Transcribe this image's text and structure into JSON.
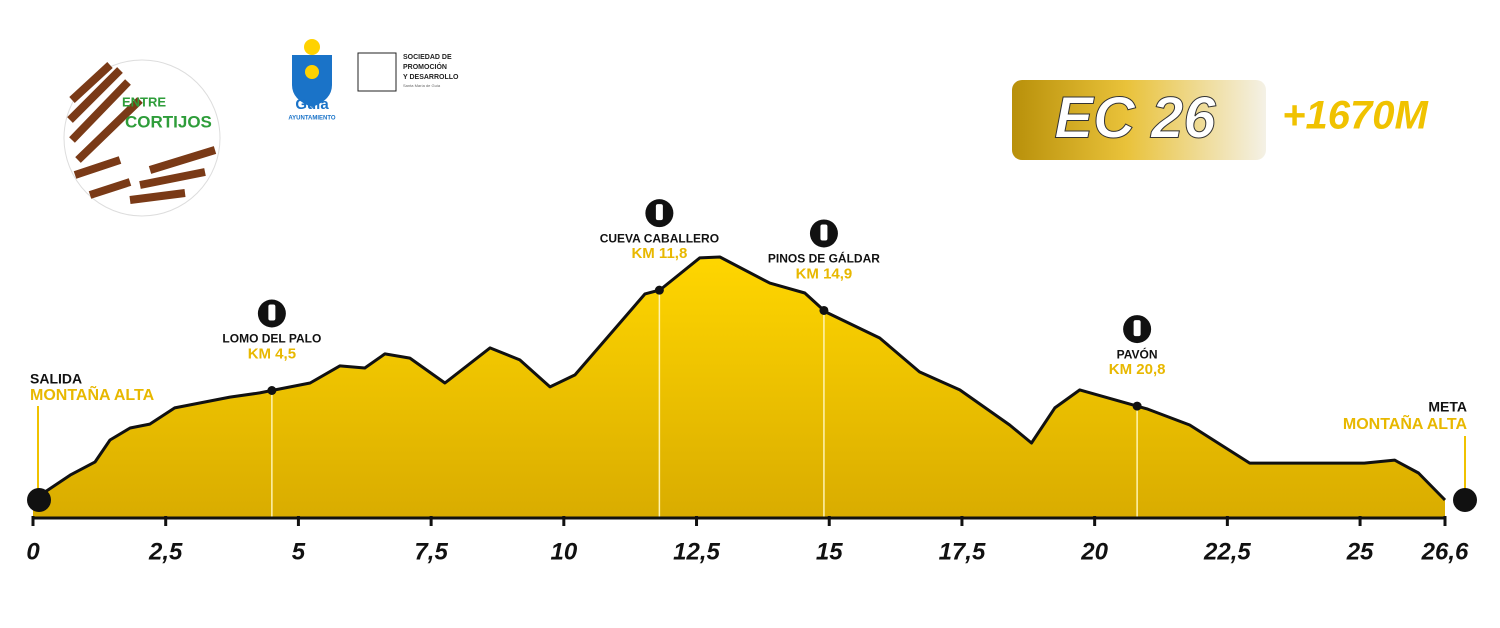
{
  "chart_data": {
    "type": "area",
    "badge": "EC 26",
    "gain": "+1670M",
    "logos": {
      "entre": "ENTRE",
      "cortijos": "CORTIJOS",
      "guia": "Guía",
      "ayuntamiento": "AYUNTAMIENTO",
      "sociedad": "SOCIEDAD DE",
      "promocion": "PROMOCIÓN",
      "desarrollo": "Y DESARROLLO",
      "santa_maria": "Santa María de Guía"
    },
    "start": {
      "name": "SALIDA",
      "place": "MONTAÑA ALTA"
    },
    "finish": {
      "name": "META",
      "place": "MONTAÑA ALTA"
    },
    "x": [
      0,
      0.7,
      1.17,
      1.45,
      1.83,
      2.2,
      2.67,
      3.71,
      4.27,
      5.22,
      5.78,
      6.25,
      6.63,
      7.1,
      7.76,
      8.61,
      9.17,
      9.74,
      10.21,
      11.53,
      11.81,
      12.56,
      12.94,
      13.88,
      14.54,
      14.93,
      15.95,
      16.7,
      17.46,
      18.4,
      18.81,
      19.25,
      19.72,
      21.0,
      21.79,
      22.92,
      25.08,
      25.65,
      26.1,
      26.6
    ],
    "series": [
      {
        "color": "#111111",
        "fill": "#ffd200",
        "values": [
          5,
          13.3,
          17.7,
          25,
          29,
          30.3,
          35.7,
          39.3,
          40.7,
          44,
          49.7,
          49,
          53.7,
          52.3,
          44,
          55.7,
          51.7,
          42.7,
          46.7,
          73.7,
          75,
          85.7,
          86,
          77.3,
          74,
          67.7,
          59,
          47.7,
          41.7,
          30,
          24,
          35.7,
          41.7,
          35.3,
          30,
          17.3,
          17.3,
          18.3,
          14,
          5
        ]
      }
    ],
    "waypoints": [
      {
        "name": "LOMO DEL PALO",
        "km": {
          "value": 4.5,
          "label": "KM 4,5"
        }
      },
      {
        "name": "CUEVA CABALLERO",
        "km": {
          "value": 11.8,
          "label": "KM 11,8"
        }
      },
      {
        "name": "PINOS DE GÁLDAR",
        "km": {
          "value": 14.9,
          "label": "KM 14,9"
        }
      },
      {
        "name": "PAVÓN",
        "km": {
          "value": 20.8,
          "label": "KM 20,8"
        }
      }
    ],
    "xlim": [
      0,
      26.6
    ],
    "ylim": [
      0,
      100
    ],
    "xticks": [
      0,
      {
        "value": 2.5,
        "label": "2,5"
      },
      5,
      {
        "value": 7.5,
        "label": "7,5"
      },
      10,
      {
        "value": 12.5,
        "label": "12,5"
      },
      15,
      {
        "value": 17.5,
        "label": "17,5"
      },
      20,
      {
        "value": 22.5,
        "label": "22,5"
      },
      25,
      {
        "value": 26.6,
        "label": "26,6"
      }
    ]
  }
}
